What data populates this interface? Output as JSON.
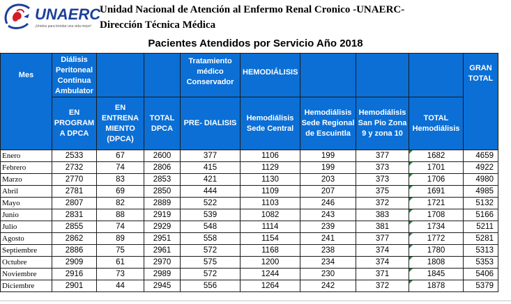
{
  "logo": {
    "text": "UNAERC",
    "tagline": "¡Unidos para brindar una vida mejor!",
    "icon": "kidney-hands-icon",
    "colors": {
      "blue": "#1d3f9a",
      "red": "#d11f2a"
    }
  },
  "header": {
    "org_name": "Unidad Nacional de Atención al Enfermo Renal Cronico -UNAERC-",
    "dept": "Dirección Técnica Médica"
  },
  "table_title": "Pacientes Atendidos por Servicio Año 2018",
  "columns": {
    "mes": "Mes",
    "dpca_group": "Diálisis Peritoneal Continua Ambulator",
    "tratamiento": "Tratamiento médico Conservador",
    "hemo_group": "HEMODIÁLISIS",
    "gran_total": "GRAN TOTAL",
    "en_programa": "EN PROGRAM A DPCA",
    "en_entrenamiento": "EN ENTRENA MIENTO (DPCA)",
    "total_dpca": "TOTAL DPCA",
    "pre_dialisis": "PRE- DIALISIS",
    "hemo_central": "Hemodiálisis Sede Central",
    "hemo_escuintla": "Hemodiálisis Sede Regional de Escuintla",
    "hemo_sanpio": "Hemodiálisis San Pio Zona 9 y zona 10",
    "total_hemo": "TOTAL Hemodiálisis"
  },
  "colors": {
    "header_bg": "#0b6fd6",
    "header_text": "#ffffff",
    "corner_mark": "#1f8a3a"
  },
  "rows": [
    {
      "mes": "Enero",
      "en_programa": "2533",
      "entrenamiento": "67",
      "total_dpca": "2600",
      "pre": "377",
      "central": "1106",
      "escuintla": "199",
      "sanpio": "377",
      "total_hemo": "1682",
      "gran_total": "4659"
    },
    {
      "mes": "Febrero",
      "en_programa": "2732",
      "entrenamiento": "74",
      "total_dpca": "2806",
      "pre": "415",
      "central": "1129",
      "escuintla": "199",
      "sanpio": "373",
      "total_hemo": "1701",
      "gran_total": "4922"
    },
    {
      "mes": "Marzo",
      "en_programa": "2770",
      "entrenamiento": "83",
      "total_dpca": "2853",
      "pre": "421",
      "central": "1130",
      "escuintla": "203",
      "sanpio": "373",
      "total_hemo": "1706",
      "gran_total": "4980"
    },
    {
      "mes": "Abril",
      "en_programa": "2781",
      "entrenamiento": "69",
      "total_dpca": "2850",
      "pre": "444",
      "central": "1109",
      "escuintla": "207",
      "sanpio": "375",
      "total_hemo": "1691",
      "gran_total": "4985"
    },
    {
      "mes": "Mayo",
      "en_programa": "2807",
      "entrenamiento": "82",
      "total_dpca": "2889",
      "pre": "522",
      "central": "1103",
      "escuintla": "246",
      "sanpio": "372",
      "total_hemo": "1721",
      "gran_total": "5132"
    },
    {
      "mes": "Junio",
      "en_programa": "2831",
      "entrenamiento": "88",
      "total_dpca": "2919",
      "pre": "539",
      "central": "1082",
      "escuintla": "243",
      "sanpio": "383",
      "total_hemo": "1708",
      "gran_total": "5166"
    },
    {
      "mes": "Julio",
      "en_programa": "2855",
      "entrenamiento": "74",
      "total_dpca": "2929",
      "pre": "548",
      "central": "1114",
      "escuintla": "239",
      "sanpio": "381",
      "total_hemo": "1734",
      "gran_total": "5211"
    },
    {
      "mes": "Agosto",
      "en_programa": "2862",
      "entrenamiento": "89",
      "total_dpca": "2951",
      "pre": "558",
      "central": "1154",
      "escuintla": "241",
      "sanpio": "377",
      "total_hemo": "1772",
      "gran_total": "5281"
    },
    {
      "mes": "Septiembre",
      "en_programa": "2886",
      "entrenamiento": "75",
      "total_dpca": "2961",
      "pre": "572",
      "central": "1168",
      "escuintla": "238",
      "sanpio": "374",
      "total_hemo": "1780",
      "gran_total": "5313"
    },
    {
      "mes": "Octubre",
      "en_programa": "2909",
      "entrenamiento": "61",
      "total_dpca": "2970",
      "pre": "575",
      "central": "1200",
      "escuintla": "234",
      "sanpio": "374",
      "total_hemo": "1808",
      "gran_total": "5353"
    },
    {
      "mes": "Noviembre",
      "en_programa": "2916",
      "entrenamiento": "73",
      "total_dpca": "2989",
      "pre": "572",
      "central": "1244",
      "escuintla": "230",
      "sanpio": "371",
      "total_hemo": "1845",
      "gran_total": "5406"
    },
    {
      "mes": "Diciembre",
      "en_programa": "2901",
      "entrenamiento": "44",
      "total_dpca": "2945",
      "pre": "556",
      "central": "1264",
      "escuintla": "242",
      "sanpio": "372",
      "total_hemo": "1878",
      "gran_total": "5379"
    }
  ]
}
